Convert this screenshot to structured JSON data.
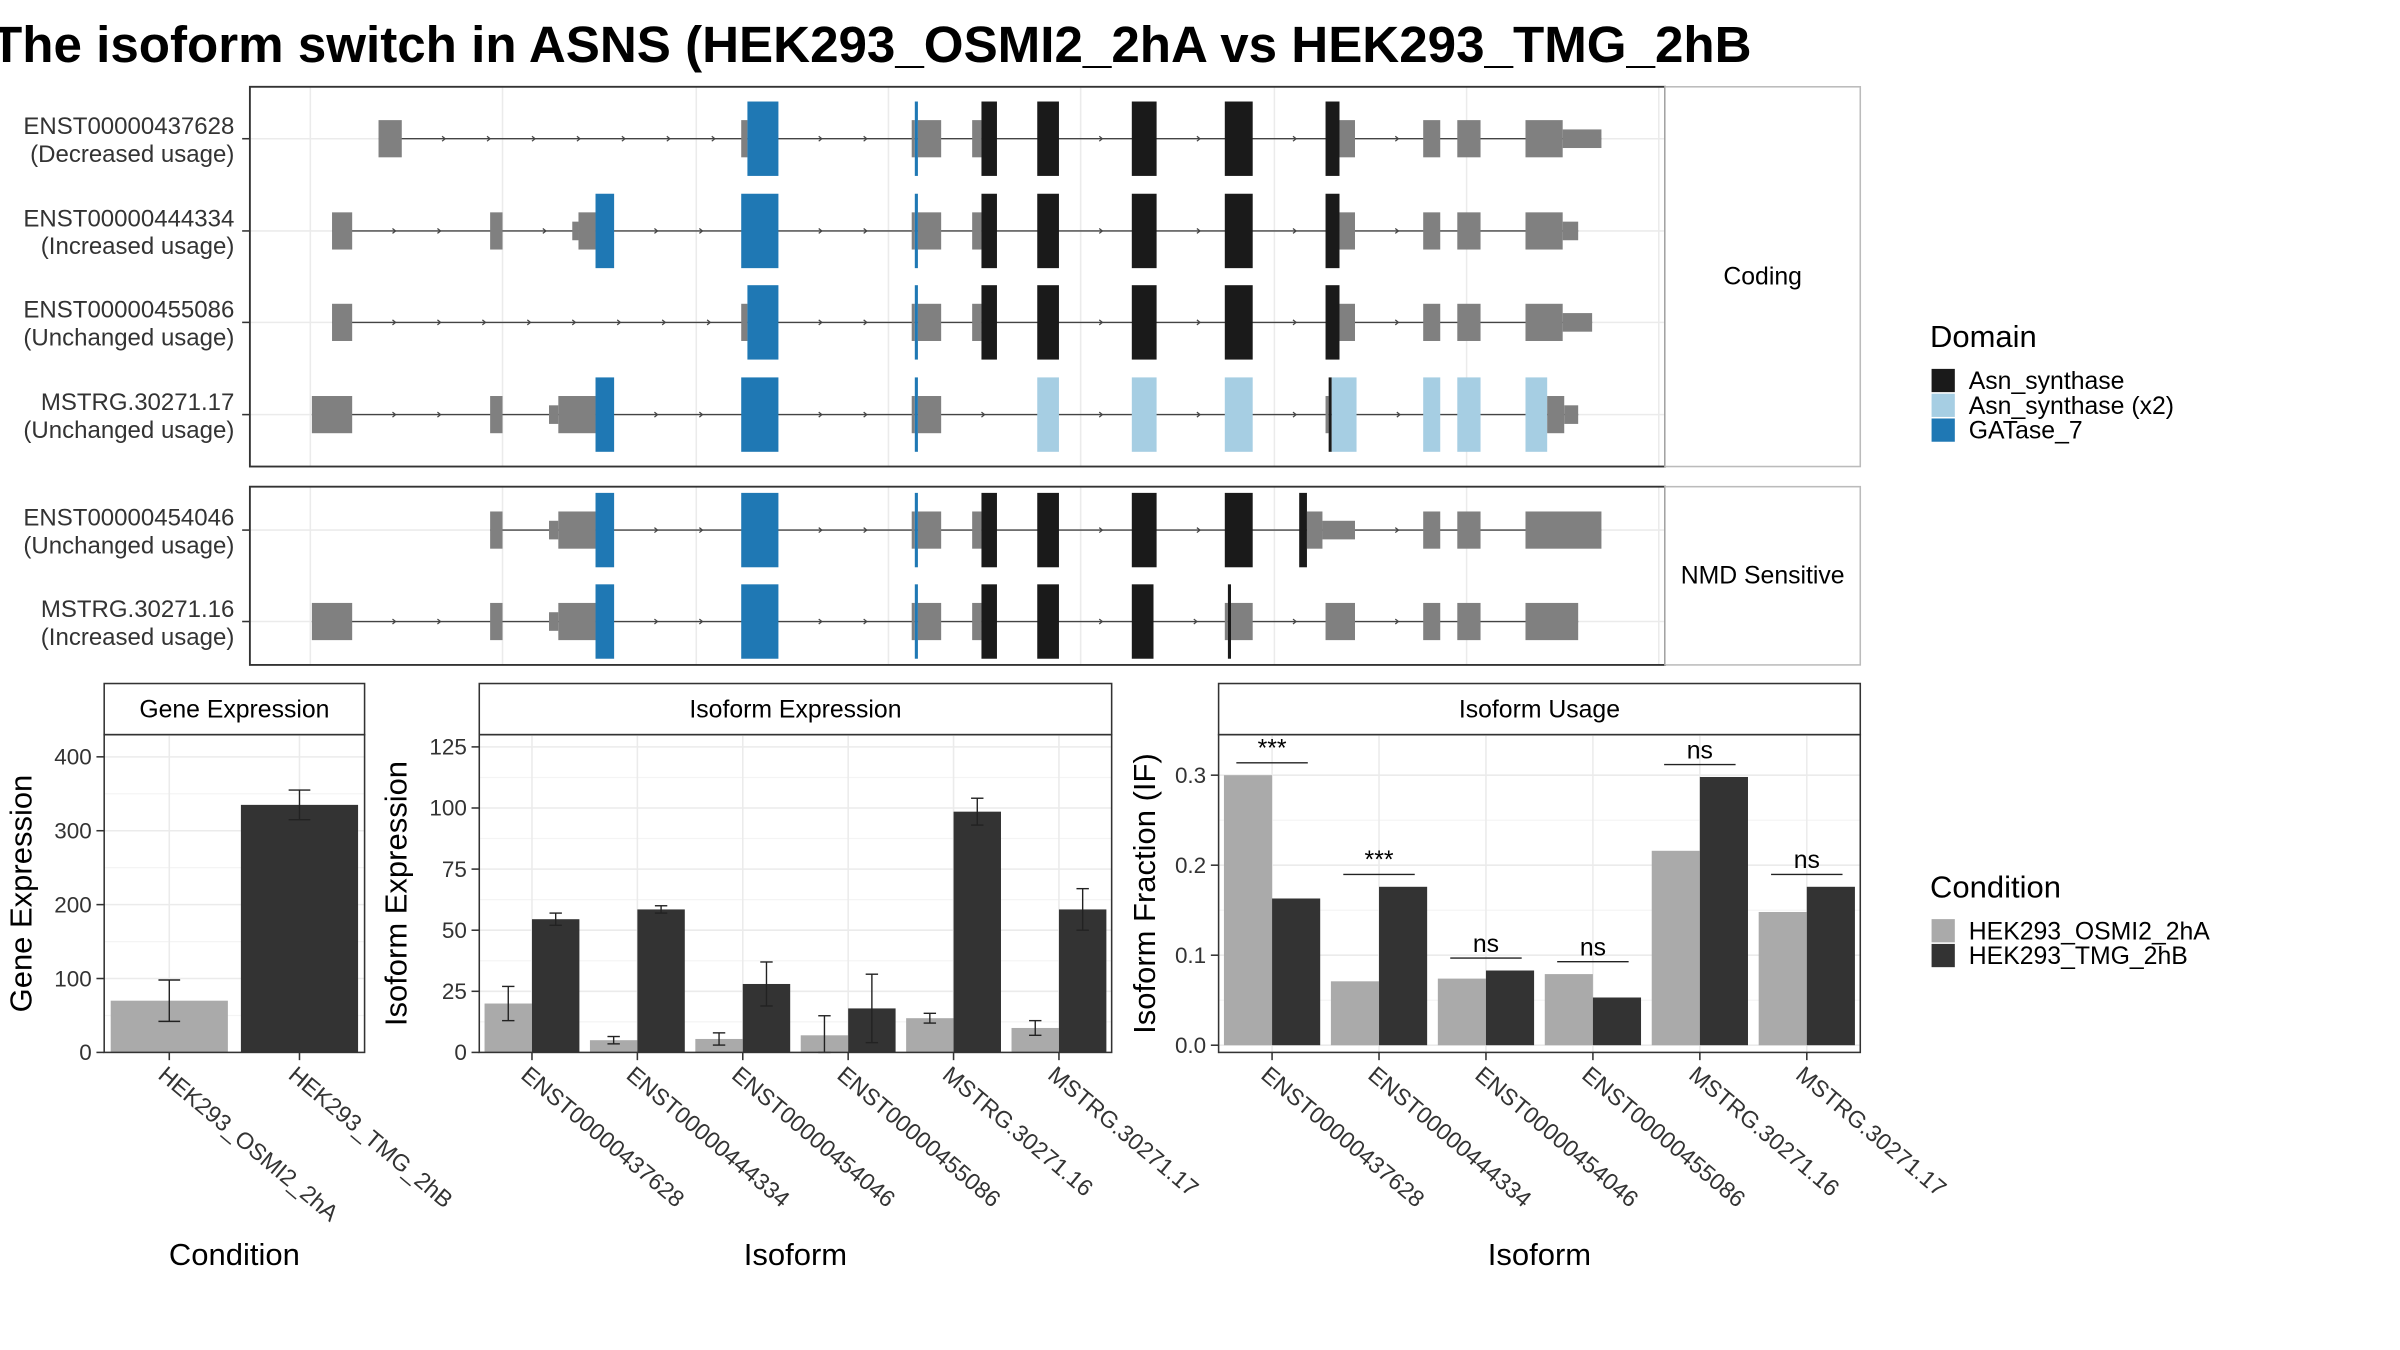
{
  "title": "The isoform switch in ASNS (HEK293_OSMI2_2hA vs HEK293_TMG_2hB",
  "colors": {
    "exon": "#808080",
    "asn_synthase": "#1a1a1a",
    "asn_synthase_x2": "#a6cee3",
    "gatase_7": "#1f78b4",
    "cond_a": "#aaaaaa",
    "cond_b": "#333333"
  },
  "structure": {
    "groups": [
      {
        "label": "Coding",
        "transcripts": [
          {
            "name": "ENST00000437628",
            "usage": "(Decreased usage)"
          },
          {
            "name": "ENST00000444334",
            "usage": "(Increased usage)"
          },
          {
            "name": "ENST00000455086",
            "usage": "(Unchanged usage)"
          },
          {
            "name": "MSTRG.30271.17",
            "usage": "(Unchanged usage)"
          }
        ]
      },
      {
        "label": "NMD Sensitive",
        "transcripts": [
          {
            "name": "ENST00000454046",
            "usage": "(Unchanged usage)"
          },
          {
            "name": "MSTRG.30271.16",
            "usage": "(Increased usage)"
          }
        ]
      }
    ]
  },
  "legends": {
    "domain_title": "Domain",
    "domain_items": [
      {
        "label": "Asn_synthase",
        "color": "#1a1a1a"
      },
      {
        "label": "Asn_synthase (x2)",
        "color": "#a6cee3"
      },
      {
        "label": "GATase_7",
        "color": "#1f78b4"
      }
    ],
    "condition_title": "Condition",
    "condition_items": [
      {
        "label": "HEK293_OSMI2_2hA",
        "color": "#aaaaaa"
      },
      {
        "label": "HEK293_TMG_2hB",
        "color": "#333333"
      }
    ]
  },
  "chart_data": [
    {
      "type": "bar",
      "title": "Gene Expression",
      "xlabel": "Condition",
      "ylabel": "Gene Expression",
      "categories": [
        "HEK293_OSMI2_2hA",
        "HEK293_TMG_2hB"
      ],
      "values": [
        70,
        335
      ],
      "errors": [
        [
          42,
          98
        ],
        [
          315,
          355
        ]
      ],
      "ylim": [
        0,
        430
      ],
      "yticks": [
        0,
        100,
        200,
        300,
        400
      ]
    },
    {
      "type": "bar",
      "title": "Isoform Expression",
      "xlabel": "Isoform",
      "ylabel": "Isoform Expression",
      "categories": [
        "ENST00000437628",
        "ENST00000444334",
        "ENST00000454046",
        "ENST00000455086",
        "MSTRG.30271.16",
        "MSTRG.30271.17"
      ],
      "series": [
        {
          "name": "HEK293_OSMI2_2hA",
          "values": [
            20,
            5,
            5.5,
            7,
            14,
            10
          ],
          "errors": [
            [
              13,
              27
            ],
            [
              3.5,
              6.5
            ],
            [
              3,
              8
            ],
            [
              0,
              15
            ],
            [
              12,
              16
            ],
            [
              7,
              13
            ]
          ]
        },
        {
          "name": "HEK293_TMG_2hB",
          "values": [
            54.5,
            58.5,
            28,
            18,
            98.5,
            58.5
          ],
          "errors": [
            [
              52,
              57
            ],
            [
              57,
              60
            ],
            [
              19,
              37
            ],
            [
              4,
              32
            ],
            [
              93,
              104
            ],
            [
              50,
              67
            ]
          ]
        }
      ],
      "ylim": [
        0,
        130
      ],
      "yticks": [
        0,
        25,
        50,
        75,
        100,
        125
      ]
    },
    {
      "type": "bar",
      "title": "Isoform Usage",
      "xlabel": "Isoform",
      "ylabel": "Isoform Fraction (IF)",
      "categories": [
        "ENST00000437628",
        "ENST00000444334",
        "ENST00000454046",
        "ENST00000455086",
        "MSTRG.30271.16",
        "MSTRG.30271.17"
      ],
      "series": [
        {
          "name": "HEK293_OSMI2_2hA",
          "values": [
            0.3,
            0.071,
            0.074,
            0.079,
            0.216,
            0.148
          ]
        },
        {
          "name": "HEK293_TMG_2hB",
          "values": [
            0.163,
            0.176,
            0.083,
            0.053,
            0.298,
            0.176
          ]
        }
      ],
      "annotations": [
        "***",
        "***",
        "ns",
        "ns",
        "ns",
        "ns"
      ],
      "ylim": [
        -0.008,
        0.345
      ],
      "yticks": [
        0.0,
        0.1,
        0.2,
        0.3
      ],
      "ytick_labels": [
        "0.0",
        "0.1",
        "0.2",
        "0.3"
      ]
    }
  ]
}
